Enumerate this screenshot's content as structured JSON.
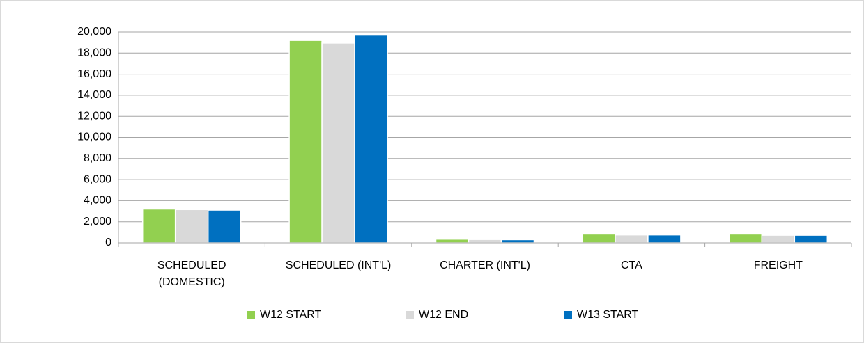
{
  "chart_data": {
    "type": "bar",
    "categories": [
      "SCHEDULED (DOMESTIC)",
      "SCHEDULED (INT'L)",
      "CHARTER (INT'L)",
      "CTA",
      "FREIGHT"
    ],
    "series": [
      {
        "name": "W12 START",
        "color": "#92d050",
        "values": [
          3200,
          19200,
          350,
          830,
          830
        ]
      },
      {
        "name": "W12 END",
        "color": "#d9d9d9",
        "values": [
          3150,
          18950,
          320,
          750,
          720
        ]
      },
      {
        "name": "W13 START",
        "color": "#0070c0",
        "values": [
          3100,
          19700,
          300,
          750,
          720
        ]
      }
    ],
    "ylim": [
      0,
      20000
    ],
    "yticks": [
      0,
      {
        "value": 2000,
        "label": "2,000"
      },
      {
        "value": 4000,
        "label": "4,000"
      },
      {
        "value": 6000,
        "label": "6,000"
      },
      {
        "value": 8000,
        "label": "8,000"
      },
      {
        "value": 10000,
        "label": "10,000"
      },
      {
        "value": 12000,
        "label": "12,000"
      },
      {
        "value": 14000,
        "label": "14,000"
      },
      {
        "value": 16000,
        "label": "16,000"
      },
      {
        "value": 18000,
        "label": "18,000"
      },
      {
        "value": 20000,
        "label": "20,000"
      }
    ],
    "grid": true,
    "legend": "bottom"
  }
}
